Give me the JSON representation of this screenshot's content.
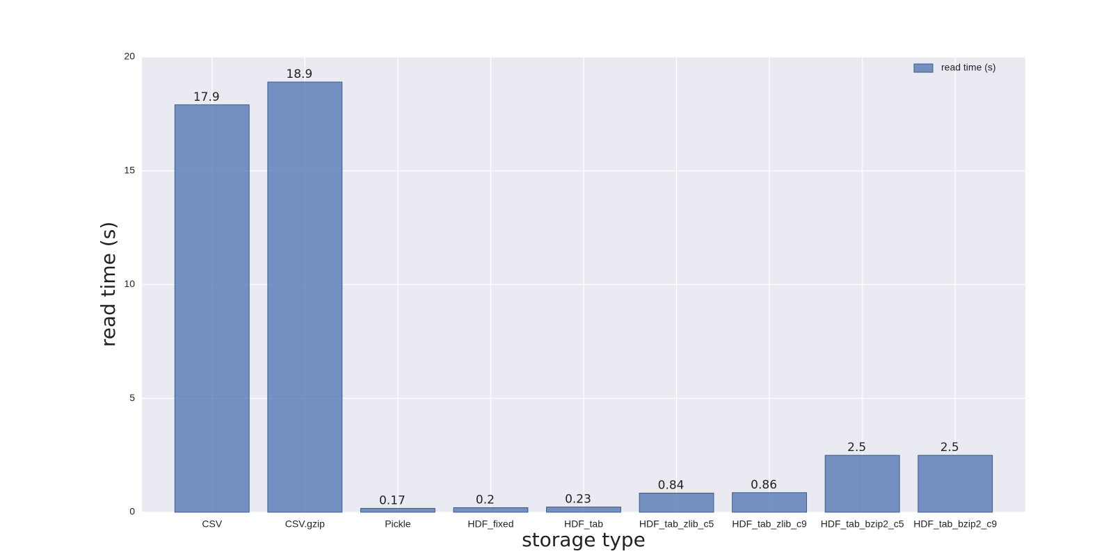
{
  "chart_data": {
    "type": "bar",
    "x_label": "storage type",
    "y_label": "read time (s)",
    "categories": [
      "CSV",
      "CSV.gzip",
      "Pickle",
      "HDF_fixed",
      "HDF_tab",
      "HDF_tab_zlib_c5",
      "HDF_tab_zlib_c9",
      "HDF_tab_bzip2_c5",
      "HDF_tab_bzip2_c9"
    ],
    "series": [
      {
        "name": "read time (s)",
        "color": "#4c72b0",
        "values": [
          17.9,
          18.9,
          0.17,
          0.2,
          0.23,
          0.84,
          0.86,
          2.5,
          2.5
        ]
      }
    ],
    "ylim": [
      0,
      20
    ],
    "yticks": [
      0,
      5,
      10,
      15,
      20
    ],
    "grid": true,
    "legend": "upper right"
  }
}
